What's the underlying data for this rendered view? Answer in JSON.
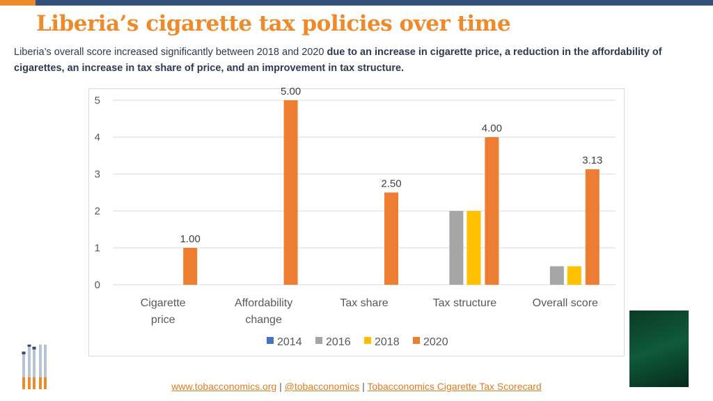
{
  "title": "Liberia’s cigarette tax policies over time",
  "subtitle": {
    "plain": "Liberia’s overall score increased significantly between 2018 and 2020 ",
    "bold": "due to an increase in cigarette price, a reduction in the affordability of cigarettes, an increase in tax share of price, and an improvement in tax structure."
  },
  "footer": {
    "link1": "www.tobacconomics.org",
    "sep1": " | ",
    "link2": "@tobacconomics",
    "sep2": " | ",
    "link3": "Tobacconomics Cigarette Tax Scorecard"
  },
  "chart_data": {
    "type": "bar",
    "categories": [
      "Cigarette price",
      "Affordability change",
      "Tax share",
      "Tax structure",
      "Overall score"
    ],
    "series": [
      {
        "name": "2014",
        "color": "#4472c4",
        "values": [
          0,
          0,
          0,
          0,
          0
        ]
      },
      {
        "name": "2016",
        "color": "#a5a5a5",
        "values": [
          0,
          0,
          0,
          2,
          0.5
        ]
      },
      {
        "name": "2018",
        "color": "#ffc000",
        "values": [
          0,
          0,
          0,
          2,
          0.5
        ]
      },
      {
        "name": "2020",
        "color": "#ed7d31",
        "values": [
          1,
          5,
          2.5,
          4,
          3.13
        ]
      }
    ],
    "data_labels": {
      "series": "2020",
      "labels": [
        "1.00",
        "5.00",
        "2.50",
        "4.00",
        "3.13"
      ]
    },
    "yticks": [
      "0",
      "1",
      "2",
      "3",
      "4",
      "5"
    ],
    "ylim": [
      0,
      5
    ],
    "grid": true,
    "legend": "bottom"
  }
}
